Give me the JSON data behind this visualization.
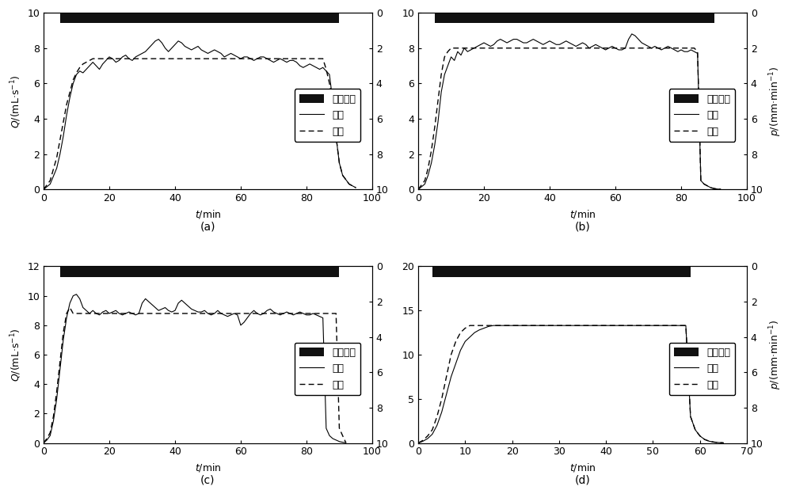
{
  "subplots": [
    {
      "label": "(a)",
      "xlim": [
        0,
        100
      ],
      "xticks": [
        0,
        20,
        40,
        60,
        80,
        100
      ],
      "ylim_left": [
        0,
        10
      ],
      "yticks_left": [
        0,
        2,
        4,
        6,
        8,
        10
      ],
      "ylim_right": [
        10,
        0
      ],
      "yticks_right": [
        0,
        2,
        4,
        6,
        8,
        10
      ],
      "rain_start": 5,
      "rain_end": 90,
      "measured_t": [
        0,
        2,
        4,
        5,
        6,
        7,
        8,
        9,
        10,
        11,
        12,
        13,
        14,
        15,
        16,
        17,
        18,
        19,
        20,
        21,
        22,
        23,
        24,
        25,
        26,
        27,
        28,
        29,
        30,
        31,
        32,
        33,
        34,
        35,
        36,
        37,
        38,
        39,
        40,
        41,
        42,
        43,
        44,
        45,
        46,
        47,
        48,
        49,
        50,
        51,
        52,
        53,
        54,
        55,
        56,
        57,
        58,
        59,
        60,
        61,
        62,
        63,
        64,
        65,
        66,
        67,
        68,
        69,
        70,
        71,
        72,
        73,
        74,
        75,
        76,
        77,
        78,
        79,
        80,
        81,
        82,
        83,
        84,
        85,
        86,
        87,
        88,
        89,
        90,
        91,
        93,
        95
      ],
      "measured_q": [
        0,
        0.3,
        1.2,
        2.0,
        3.0,
        4.2,
        5.2,
        6.0,
        6.5,
        6.7,
        6.6,
        6.8,
        7.0,
        7.2,
        7.0,
        6.8,
        7.1,
        7.3,
        7.5,
        7.4,
        7.2,
        7.3,
        7.5,
        7.6,
        7.4,
        7.3,
        7.5,
        7.6,
        7.7,
        7.8,
        8.0,
        8.2,
        8.4,
        8.5,
        8.3,
        8.0,
        7.8,
        8.0,
        8.2,
        8.4,
        8.3,
        8.1,
        8.0,
        7.9,
        8.0,
        8.1,
        7.9,
        7.8,
        7.7,
        7.8,
        7.9,
        7.8,
        7.7,
        7.5,
        7.6,
        7.7,
        7.6,
        7.5,
        7.4,
        7.5,
        7.5,
        7.4,
        7.3,
        7.4,
        7.5,
        7.5,
        7.4,
        7.3,
        7.2,
        7.3,
        7.4,
        7.3,
        7.2,
        7.3,
        7.3,
        7.2,
        7.0,
        6.9,
        7.0,
        7.1,
        7.0,
        6.9,
        6.8,
        6.9,
        6.7,
        6.5,
        5.0,
        3.0,
        1.5,
        0.8,
        0.3,
        0.1
      ],
      "calc_t": [
        0,
        2,
        4,
        5,
        6,
        7,
        8,
        9,
        10,
        11,
        12,
        13,
        14,
        15,
        16,
        17,
        18,
        19,
        20,
        21,
        22,
        23,
        24,
        25,
        26,
        27,
        28,
        29,
        30,
        35,
        40,
        45,
        50,
        55,
        60,
        65,
        70,
        75,
        80,
        85,
        86,
        87,
        88,
        89,
        90,
        91,
        93,
        95
      ],
      "calc_q": [
        0,
        0.5,
        1.8,
        2.8,
        3.8,
        4.8,
        5.5,
        6.2,
        6.6,
        6.9,
        7.1,
        7.2,
        7.3,
        7.4,
        7.4,
        7.4,
        7.4,
        7.4,
        7.4,
        7.4,
        7.4,
        7.4,
        7.4,
        7.4,
        7.4,
        7.4,
        7.4,
        7.4,
        7.4,
        7.4,
        7.4,
        7.4,
        7.4,
        7.4,
        7.4,
        7.4,
        7.4,
        7.4,
        7.4,
        7.4,
        6.8,
        6.0,
        5.0,
        3.0,
        1.5,
        0.8,
        0.3,
        0.1
      ]
    },
    {
      "label": "(b)",
      "xlim": [
        0,
        100
      ],
      "xticks": [
        0,
        20,
        40,
        60,
        80,
        100
      ],
      "ylim_left": [
        0,
        10
      ],
      "yticks_left": [
        0,
        2,
        4,
        6,
        8,
        10
      ],
      "ylim_right": [
        10,
        0
      ],
      "yticks_right": [
        0,
        2,
        4,
        6,
        8,
        10
      ],
      "rain_start": 5,
      "rain_end": 90,
      "measured_t": [
        0,
        2,
        3,
        4,
        5,
        6,
        7,
        8,
        9,
        10,
        11,
        12,
        13,
        14,
        15,
        16,
        17,
        18,
        19,
        20,
        21,
        22,
        23,
        24,
        25,
        26,
        27,
        28,
        29,
        30,
        31,
        32,
        33,
        34,
        35,
        36,
        37,
        38,
        39,
        40,
        41,
        42,
        43,
        44,
        45,
        46,
        47,
        48,
        49,
        50,
        51,
        52,
        53,
        54,
        55,
        56,
        57,
        58,
        59,
        60,
        61,
        62,
        63,
        64,
        65,
        66,
        67,
        68,
        69,
        70,
        71,
        72,
        73,
        74,
        75,
        76,
        77,
        78,
        79,
        80,
        81,
        82,
        83,
        84,
        85,
        86,
        87,
        88,
        89,
        90,
        91,
        92
      ],
      "measured_q": [
        0,
        0.3,
        0.8,
        1.5,
        2.5,
        3.8,
        5.5,
        6.5,
        7.0,
        7.5,
        7.3,
        7.8,
        7.6,
        8.0,
        7.8,
        7.9,
        8.0,
        8.1,
        8.2,
        8.3,
        8.2,
        8.1,
        8.2,
        8.4,
        8.5,
        8.4,
        8.3,
        8.4,
        8.5,
        8.5,
        8.4,
        8.3,
        8.3,
        8.4,
        8.5,
        8.4,
        8.3,
        8.2,
        8.3,
        8.4,
        8.3,
        8.2,
        8.2,
        8.3,
        8.4,
        8.3,
        8.2,
        8.1,
        8.2,
        8.3,
        8.2,
        8.0,
        8.1,
        8.2,
        8.1,
        8.0,
        7.9,
        8.0,
        8.1,
        8.0,
        7.9,
        7.9,
        8.0,
        8.5,
        8.8,
        8.7,
        8.5,
        8.3,
        8.2,
        8.1,
        8.0,
        8.1,
        8.0,
        7.9,
        8.0,
        8.1,
        8.0,
        7.9,
        7.8,
        7.9,
        7.8,
        7.8,
        7.9,
        7.8,
        7.7,
        0.5,
        0.3,
        0.2,
        0.1,
        0.05,
        0.02,
        0.01
      ],
      "calc_t": [
        0,
        2,
        3,
        4,
        5,
        6,
        7,
        8,
        9,
        10,
        12,
        14,
        16,
        18,
        20,
        25,
        30,
        35,
        40,
        45,
        50,
        55,
        60,
        65,
        70,
        75,
        80,
        83,
        84,
        85,
        86,
        87,
        88,
        89,
        90,
        91,
        92
      ],
      "calc_q": [
        0,
        0.5,
        1.2,
        2.2,
        3.5,
        5.0,
        6.5,
        7.5,
        7.8,
        8.0,
        8.0,
        8.0,
        8.0,
        8.0,
        8.0,
        8.0,
        8.0,
        8.0,
        8.0,
        8.0,
        8.0,
        8.0,
        8.0,
        8.0,
        8.0,
        8.0,
        8.0,
        8.0,
        8.0,
        7.8,
        0.5,
        0.3,
        0.2,
        0.1,
        0.05,
        0.02,
        0.01
      ]
    },
    {
      "label": "(c)",
      "xlim": [
        0,
        100
      ],
      "xticks": [
        0,
        20,
        40,
        60,
        80,
        100
      ],
      "ylim_left": [
        0,
        12
      ],
      "yticks_left": [
        0,
        2,
        4,
        6,
        8,
        10,
        12
      ],
      "ylim_right": [
        10,
        0
      ],
      "yticks_right": [
        0,
        2,
        4,
        6,
        8,
        10
      ],
      "rain_start": 5,
      "rain_end": 90,
      "measured_t": [
        0,
        1,
        2,
        3,
        4,
        5,
        6,
        7,
        8,
        9,
        10,
        11,
        12,
        13,
        14,
        15,
        16,
        17,
        18,
        19,
        20,
        21,
        22,
        23,
        24,
        25,
        26,
        27,
        28,
        29,
        30,
        31,
        32,
        33,
        34,
        35,
        36,
        37,
        38,
        39,
        40,
        41,
        42,
        43,
        44,
        45,
        46,
        47,
        48,
        49,
        50,
        51,
        52,
        53,
        54,
        55,
        56,
        57,
        58,
        59,
        60,
        61,
        62,
        63,
        64,
        65,
        66,
        67,
        68,
        69,
        70,
        71,
        72,
        73,
        74,
        75,
        76,
        77,
        78,
        79,
        80,
        81,
        82,
        83,
        84,
        85,
        86,
        87,
        88,
        89,
        90,
        91,
        92
      ],
      "measured_q": [
        0,
        0.2,
        0.5,
        1.5,
        3.0,
        5.0,
        7.0,
        8.5,
        9.5,
        10.0,
        10.1,
        9.8,
        9.2,
        9.0,
        8.8,
        9.0,
        8.8,
        8.7,
        8.9,
        9.0,
        8.8,
        8.9,
        9.0,
        8.8,
        8.7,
        8.8,
        8.9,
        8.8,
        8.7,
        8.8,
        9.5,
        9.8,
        9.6,
        9.4,
        9.2,
        9.0,
        9.1,
        9.2,
        9.0,
        8.9,
        9.0,
        9.5,
        9.7,
        9.5,
        9.3,
        9.1,
        9.0,
        8.9,
        8.9,
        9.0,
        8.8,
        8.7,
        8.8,
        9.0,
        8.8,
        8.7,
        8.6,
        8.7,
        8.8,
        8.7,
        8.0,
        8.2,
        8.5,
        8.8,
        9.0,
        8.8,
        8.7,
        8.8,
        9.0,
        9.1,
        8.9,
        8.8,
        8.7,
        8.8,
        8.9,
        8.8,
        8.7,
        8.8,
        8.9,
        8.8,
        8.7,
        8.7,
        8.8,
        8.7,
        8.6,
        8.5,
        1.0,
        0.5,
        0.3,
        0.2,
        0.1,
        0.05,
        0.02
      ],
      "calc_t": [
        0,
        1,
        2,
        3,
        4,
        5,
        6,
        7,
        8,
        9,
        10,
        15,
        20,
        25,
        30,
        35,
        40,
        45,
        50,
        55,
        60,
        65,
        70,
        75,
        80,
        85,
        86,
        87,
        88,
        89,
        90,
        91,
        92
      ],
      "calc_q": [
        0,
        0.3,
        0.7,
        1.8,
        3.5,
        5.5,
        7.5,
        8.8,
        9.2,
        8.8,
        8.8,
        8.8,
        8.8,
        8.8,
        8.8,
        8.8,
        8.8,
        8.8,
        8.8,
        8.8,
        8.8,
        8.8,
        8.8,
        8.8,
        8.8,
        8.8,
        8.8,
        8.8,
        8.8,
        8.8,
        1.0,
        0.5,
        0.02
      ]
    },
    {
      "label": "(d)",
      "xlim": [
        0,
        70
      ],
      "xticks": [
        0,
        10,
        20,
        30,
        40,
        50,
        60,
        70
      ],
      "ylim_left": [
        0,
        20
      ],
      "yticks_left": [
        0,
        5,
        10,
        15,
        20
      ],
      "ylim_right": [
        10,
        0
      ],
      "yticks_right": [
        0,
        2,
        4,
        6,
        8,
        10
      ],
      "rain_start": 3,
      "rain_end": 58,
      "measured_t": [
        0,
        1,
        2,
        3,
        4,
        5,
        6,
        7,
        8,
        9,
        10,
        11,
        12,
        13,
        14,
        15,
        16,
        17,
        18,
        19,
        20,
        21,
        22,
        23,
        24,
        25,
        26,
        27,
        28,
        29,
        30,
        31,
        32,
        33,
        34,
        35,
        36,
        37,
        38,
        39,
        40,
        41,
        42,
        43,
        44,
        45,
        46,
        47,
        48,
        49,
        50,
        51,
        52,
        53,
        54,
        55,
        56,
        57,
        58,
        59,
        60,
        61,
        62,
        63,
        64,
        65
      ],
      "measured_q": [
        0,
        0.2,
        0.5,
        1.0,
        2.0,
        3.5,
        5.5,
        7.5,
        9.0,
        10.5,
        11.5,
        12.0,
        12.5,
        12.8,
        13.0,
        13.2,
        13.3,
        13.3,
        13.3,
        13.3,
        13.3,
        13.3,
        13.3,
        13.3,
        13.3,
        13.3,
        13.3,
        13.3,
        13.3,
        13.3,
        13.3,
        13.3,
        13.3,
        13.3,
        13.3,
        13.3,
        13.3,
        13.3,
        13.3,
        13.3,
        13.3,
        13.3,
        13.3,
        13.3,
        13.3,
        13.3,
        13.3,
        13.3,
        13.3,
        13.3,
        13.3,
        13.3,
        13.3,
        13.3,
        13.3,
        13.3,
        13.3,
        13.3,
        3.0,
        1.5,
        0.8,
        0.4,
        0.2,
        0.1,
        0.05,
        0.02
      ],
      "calc_t": [
        0,
        1,
        2,
        3,
        4,
        5,
        6,
        7,
        8,
        9,
        10,
        11,
        12,
        13,
        14,
        15,
        16,
        20,
        25,
        30,
        35,
        40,
        45,
        50,
        55,
        57,
        58,
        59,
        60,
        61,
        62,
        63,
        64,
        65
      ],
      "calc_q": [
        0,
        0.3,
        0.8,
        1.5,
        3.0,
        5.0,
        7.5,
        10.0,
        11.5,
        12.5,
        13.0,
        13.3,
        13.3,
        13.3,
        13.3,
        13.3,
        13.3,
        13.3,
        13.3,
        13.3,
        13.3,
        13.3,
        13.3,
        13.3,
        13.3,
        13.3,
        3.0,
        1.5,
        0.8,
        0.4,
        0.2,
        0.1,
        0.05,
        0.02
      ]
    }
  ],
  "legend_labels": [
    "降雨强度",
    "实测",
    "计算"
  ],
  "bg_color": "#ffffff",
  "rain_color": "#111111",
  "line_color": "#000000",
  "font_size": 9,
  "label_font_size": 10
}
